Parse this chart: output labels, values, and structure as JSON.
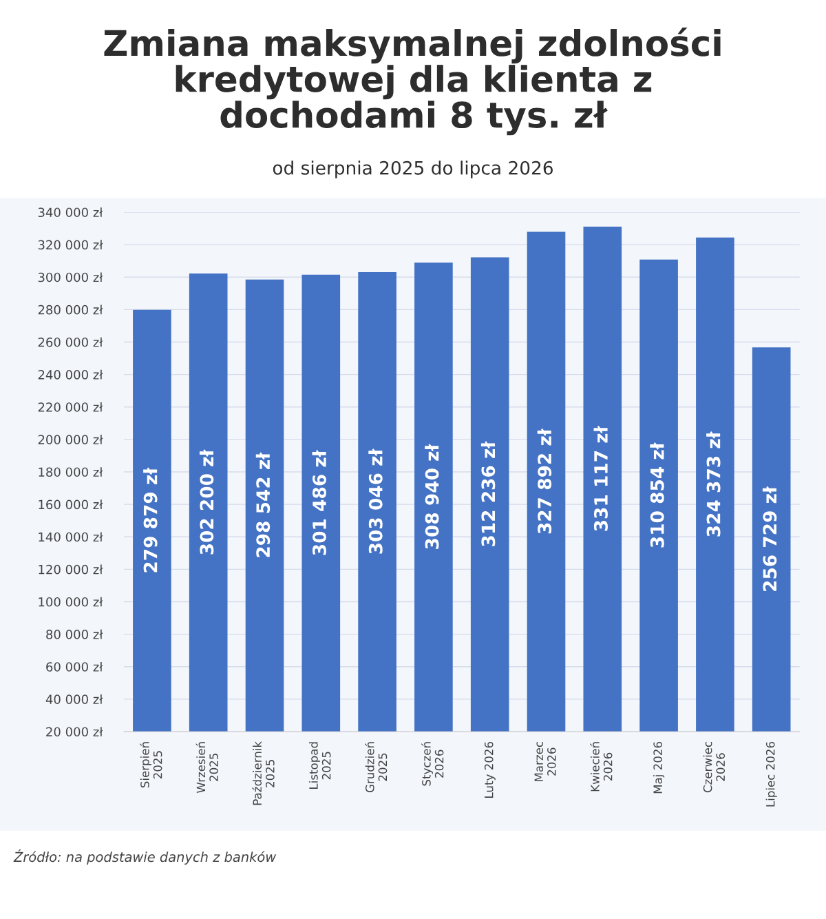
{
  "chart_data": {
    "type": "bar",
    "title": "Zmiana maksymalnej zdolności\nkredytowej dla klienta z\ndochodami 8 tys. zł",
    "subtitle": "od sierpnia 2025 do lipca 2026",
    "categories": [
      "Sierpień\n2025",
      "Wrzesień\n2025",
      "Październik\n2025",
      "Listopad\n2025",
      "Grudzień\n2025",
      "Styczeń\n2026",
      "Luty 2026",
      "Marzec\n2026",
      "Kwiecień\n2026",
      "Maj 2026",
      "Czerwiec\n2026",
      "Lipiec 2026"
    ],
    "values": [
      279879,
      302200,
      298542,
      301486,
      303046,
      308940,
      312236,
      327892,
      331117,
      310854,
      324373,
      256729
    ],
    "value_labels": [
      "279 879 zł",
      "302 200 zł",
      "298 542 zł",
      "301 486 zł",
      "303 046 zł",
      "308 940 zł",
      "312 236 zł",
      "327 892 zł",
      "331 117 zł",
      "310 854 zł",
      "324 373 zł",
      "256 729 zł"
    ],
    "color": "#4472c4",
    "ylim": [
      20000,
      340000
    ],
    "yticks": [
      {
        "value": 20000,
        "label": "20 000 zł"
      },
      {
        "value": 40000,
        "label": "40 000 zł"
      },
      {
        "value": 60000,
        "label": "60 000 zł"
      },
      {
        "value": 80000,
        "label": "80 000 zł"
      },
      {
        "value": 100000,
        "label": "100 000 zł"
      },
      {
        "value": 120000,
        "label": "120 000 zł"
      },
      {
        "value": 140000,
        "label": "140 000 zł"
      },
      {
        "value": 160000,
        "label": "160 000 zł"
      },
      {
        "value": 180000,
        "label": "180 000 zł"
      },
      {
        "value": 200000,
        "label": "200 000 zł"
      },
      {
        "value": 220000,
        "label": "220 000 zł"
      },
      {
        "value": 240000,
        "label": "240 000 zł"
      },
      {
        "value": 260000,
        "label": "260 000 zł"
      },
      {
        "value": 280000,
        "label": "280 000 zł"
      },
      {
        "value": 300000,
        "label": "300 000 zł"
      },
      {
        "value": 320000,
        "label": "320 000 zł"
      },
      {
        "value": 340000,
        "label": "340 000 zł"
      }
    ],
    "grid": "y",
    "legend": false,
    "annotations": [
      "Źródło: na podstawie danych z banków"
    ]
  }
}
